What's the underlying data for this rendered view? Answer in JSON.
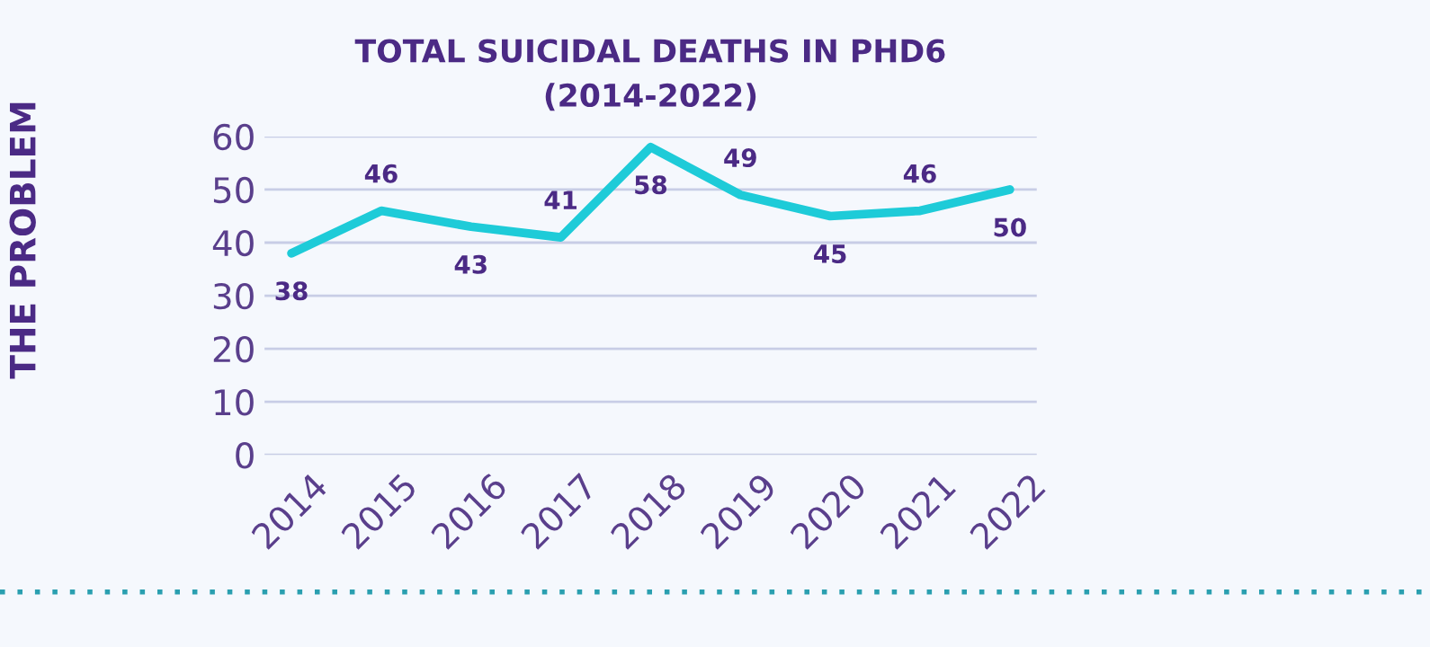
{
  "chart_data": {
    "type": "line",
    "title": "TOTAL SUICIDAL DEATHS IN PHD6\n(2014-2022)",
    "categories": [
      "2014",
      "2015",
      "2016",
      "2017",
      "2018",
      "2019",
      "2020",
      "2021",
      "2022"
    ],
    "series": [
      {
        "color": "#1ecbd8",
        "values": [
          38,
          46,
          43,
          41,
          58,
          49,
          45,
          46,
          50
        ]
      }
    ],
    "ylim": [
      0,
      60
    ],
    "yticks": [
      0,
      10,
      20,
      30,
      40,
      50,
      60
    ],
    "grid": "y",
    "data_labels": true,
    "marker": "none",
    "line_style": "solid",
    "annotations": [
      "THE PROBLEM"
    ]
  }
}
